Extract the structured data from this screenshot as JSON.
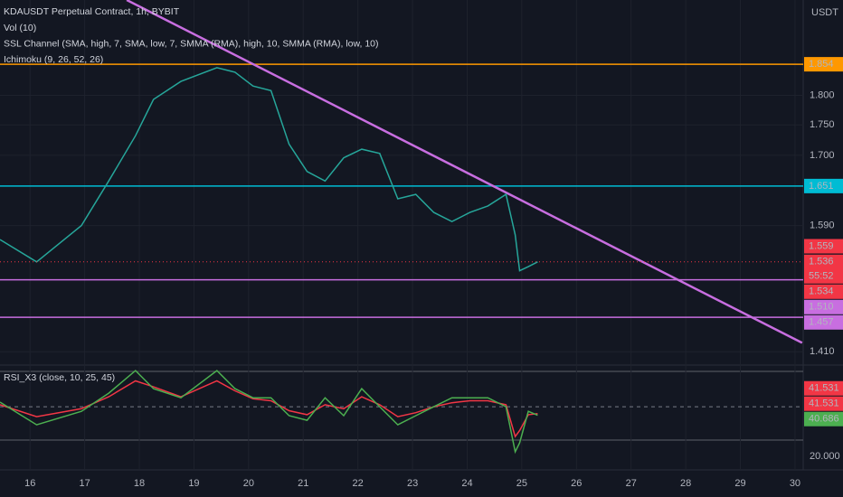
{
  "chart_data": [
    {
      "type": "line",
      "title": "KDAUSDT Perpetual Contract, 1h, BYBIT",
      "indicators": [
        "Vol (10)",
        "SSL Channel (SMA, high, 7, SMA, low, 7, SMMA (RMA), high, 10, SMMA (RMA), low, 10)",
        "Ichimoku (9, 26, 52, 26)"
      ],
      "y_unit": "USDT",
      "log_scale": true,
      "grid": true,
      "x": [
        15.45,
        16.12,
        16.94,
        17.44,
        17.93,
        18.26,
        18.76,
        19.42,
        19.75,
        20.08,
        20.41,
        20.74,
        21.07,
        21.4,
        21.74,
        22.07,
        22.4,
        22.73,
        23.06,
        23.39,
        23.72,
        24.05,
        24.38,
        24.71,
        24.88,
        24.96,
        25.12,
        25.29
      ],
      "series": [
        {
          "color": "#26a69a",
          "values": [
            1.569,
            1.536,
            1.59,
            1.659,
            1.732,
            1.793,
            1.824,
            1.848,
            1.84,
            1.816,
            1.808,
            1.718,
            1.674,
            1.659,
            1.696,
            1.71,
            1.703,
            1.631,
            1.638,
            1.61,
            1.596,
            1.61,
            1.62,
            1.638,
            1.576,
            1.523,
            1.529,
            1.536
          ]
        }
      ],
      "xlim": [
        15.45,
        30.15
      ],
      "xticks": [
        16,
        17,
        18,
        19,
        20,
        21,
        22,
        23,
        24,
        25,
        26,
        27,
        28,
        29,
        30
      ],
      "ylim": [
        1.397,
        1.971
      ],
      "yticks": [
        {
          "value": 1.8,
          "label": "1.800"
        },
        {
          "value": 1.75,
          "label": "1.750"
        },
        {
          "value": 1.7,
          "label": "1.700"
        },
        {
          "value": 1.59,
          "label": "1.590"
        },
        {
          "value": 1.41,
          "label": "1.410"
        }
      ],
      "levels": [
        {
          "value": 1.854,
          "color": "#ff9800"
        },
        {
          "value": 1.651,
          "color": "#00bcd4"
        },
        {
          "value": 1.51,
          "color": "#c86ee0"
        },
        {
          "value": 1.457,
          "color": "#c86ee0"
        }
      ],
      "trendline": {
        "x": [
          17.77,
          30.13
        ],
        "values": [
          1.971,
          1.422
        ],
        "color": "#c86ee0"
      },
      "price_labels": [
        {
          "value": 1.559,
          "color": "#f23645"
        },
        {
          "value": 1.536,
          "color": "#f23645",
          "countdown": "55:52"
        },
        {
          "value": 1.534,
          "color": "#f23645"
        },
        {
          "value": 1.51,
          "label": "1.510",
          "color": "#c86ee0"
        },
        {
          "value": 1.457,
          "color": "#c86ee0"
        }
      ]
    },
    {
      "type": "line",
      "title": "RSI_X3 (close, 10, 25, 45)",
      "ylim": [
        15.5,
        65.5
      ],
      "yticks": [
        {
          "value": 20,
          "label": "20.000"
        }
      ],
      "midline": 45,
      "series": [
        {
          "color": "#f23645",
          "values": [
            46,
            40,
            44,
            50,
            58,
            55,
            50,
            58,
            53,
            49,
            48,
            43,
            41,
            46,
            44,
            50,
            46,
            40,
            42,
            45,
            47,
            48,
            48,
            46,
            30,
            33,
            41,
            41.531
          ]
        },
        {
          "color": "#4caf50",
          "values": [
            47.3,
            35.9,
            42.7,
            51.8,
            63.2,
            54.1,
            49.5,
            63.2,
            54.1,
            49.5,
            49.5,
            40.5,
            38.2,
            49.5,
            40.5,
            54.1,
            45,
            35.9,
            40.5,
            45,
            49.5,
            49.5,
            49.5,
            45,
            22.3,
            26.8,
            42.7,
            40.686
          ]
        }
      ],
      "last_labels": [
        {
          "value": 41.531,
          "color": "#f23645"
        },
        {
          "value": 41.531,
          "color": "#f23645"
        },
        {
          "value": 40.686,
          "color": "#4caf50"
        }
      ]
    }
  ]
}
